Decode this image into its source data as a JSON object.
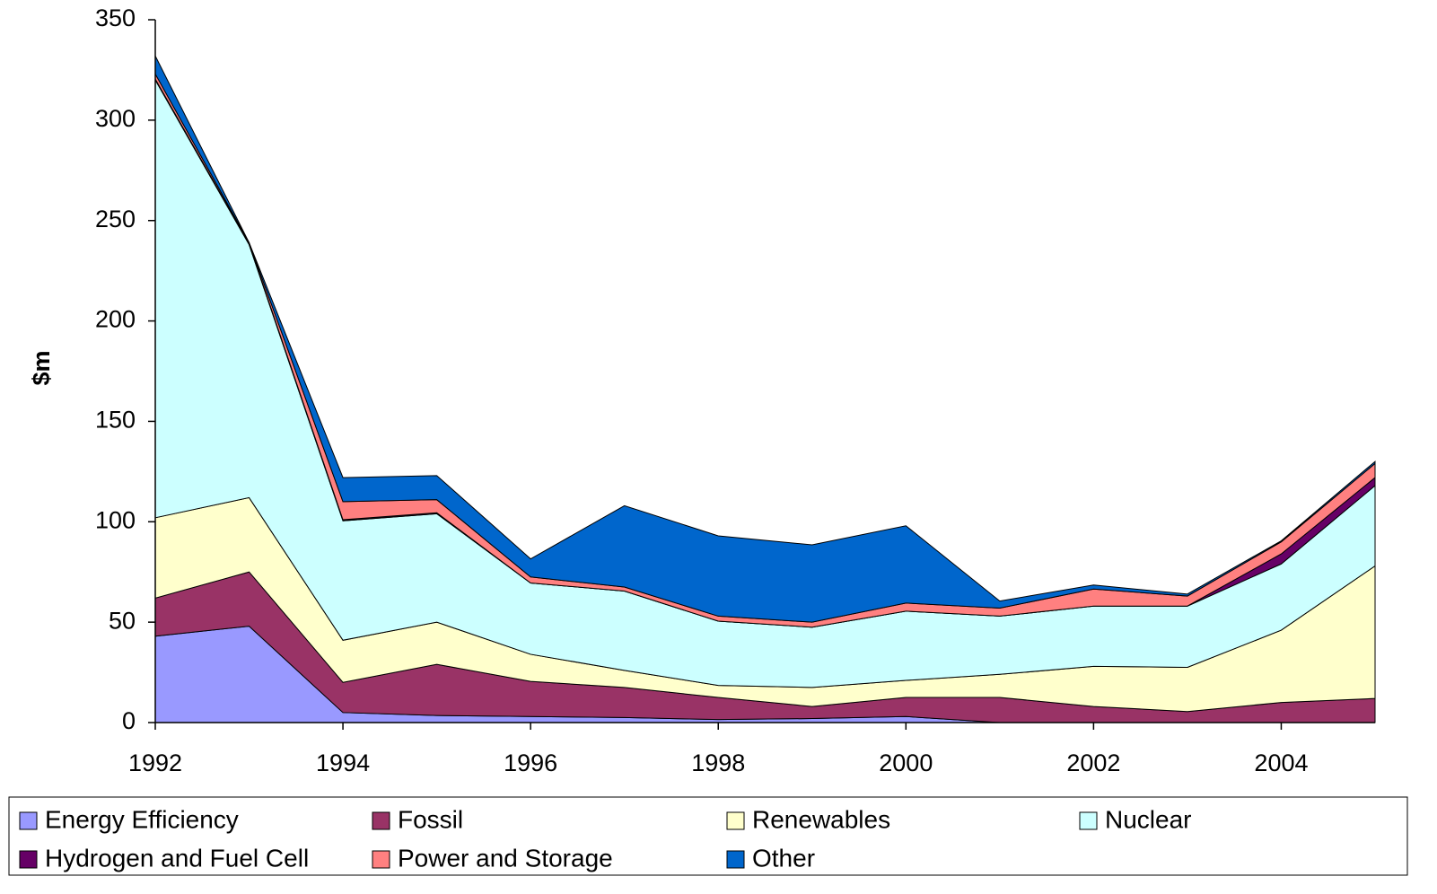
{
  "chart_data": {
    "type": "stacked_area",
    "y_label": "$m",
    "x": [
      1992,
      1993,
      1994,
      1995,
      1996,
      1997,
      1998,
      1999,
      2000,
      2001,
      2002,
      2003,
      2004,
      2005
    ],
    "xlim": [
      1992,
      2005
    ],
    "xticks": [
      1992,
      1994,
      1996,
      1998,
      2000,
      2002,
      2004
    ],
    "ylim": [
      0,
      350
    ],
    "yticks": [
      0,
      50,
      100,
      150,
      200,
      250,
      300,
      350
    ],
    "grid": false,
    "legend": "bottom",
    "series": [
      {
        "name": "Energy Efficiency",
        "color": "#9999ff",
        "values": [
          43,
          48,
          5,
          3.5,
          3,
          2.5,
          1.5,
          2,
          3,
          0,
          0,
          0,
          0,
          0
        ]
      },
      {
        "name": "Fossil",
        "color": "#993366",
        "values": [
          19,
          27,
          15,
          25.5,
          17.5,
          15,
          11,
          6,
          9.5,
          12.5,
          8,
          5.5,
          10,
          12
        ]
      },
      {
        "name": "Renewables",
        "color": "#ffffcc",
        "values": [
          40,
          37,
          21,
          21,
          13.5,
          8.5,
          6,
          9.5,
          8.5,
          11.5,
          20,
          22,
          36,
          66
        ]
      },
      {
        "name": "Nuclear",
        "color": "#ccffff",
        "values": [
          218,
          126,
          59.5,
          54,
          35.5,
          39.5,
          32,
          30,
          34.5,
          29,
          30,
          30.5,
          33,
          40
        ]
      },
      {
        "name": "Hydrogen and Fuel Cell",
        "color": "#660066",
        "values": [
          0.5,
          0.5,
          0.5,
          0.5,
          0,
          0,
          0,
          0,
          0,
          0,
          0,
          0,
          5,
          4
        ]
      },
      {
        "name": "Power and Storage",
        "color": "#ff8080",
        "values": [
          2.5,
          0.5,
          9,
          6.5,
          3,
          2,
          2.5,
          2.5,
          4,
          4,
          8.5,
          5,
          6,
          7
        ]
      },
      {
        "name": "Other",
        "color": "#0066cc",
        "values": [
          9,
          0,
          12,
          12,
          9,
          40.5,
          40,
          38.5,
          38.5,
          3.5,
          2,
          1,
          0.5,
          1
        ]
      }
    ]
  }
}
